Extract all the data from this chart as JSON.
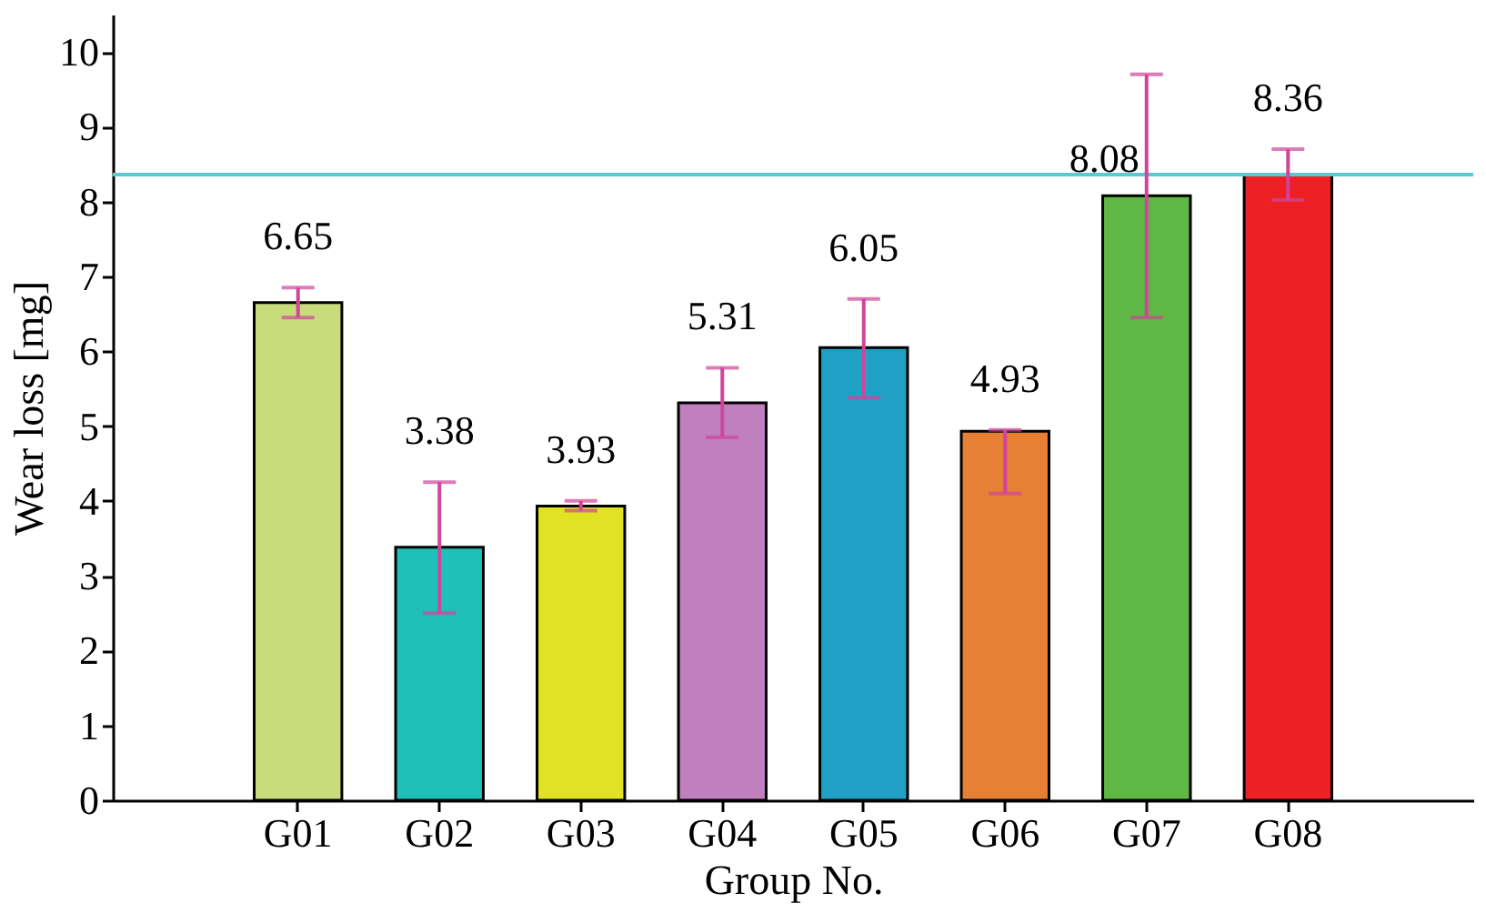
{
  "chart_data": {
    "type": "bar",
    "xlabel": "Group No.",
    "ylabel": "Wear loss [mg]",
    "categories": [
      "G01",
      "G02",
      "G03",
      "G04",
      "G05",
      "G06",
      "G07",
      "G08"
    ],
    "values": [
      6.65,
      3.38,
      3.93,
      5.31,
      6.05,
      4.93,
      8.08,
      8.36
    ],
    "colors": [
      "#c8dc7c",
      "#20c0b8",
      "#e2e224",
      "#c080c0",
      "#20a0c4",
      "#e68034",
      "#60b844",
      "#ee2024"
    ],
    "errors": [
      [
        6.45,
        6.85
      ],
      [
        2.5,
        4.25
      ],
      [
        3.87,
        4.0
      ],
      [
        4.85,
        5.78
      ],
      [
        5.38,
        6.7
      ],
      [
        4.1,
        4.95
      ],
      [
        6.45,
        9.7
      ],
      [
        8.02,
        8.7
      ]
    ],
    "data_labels": true,
    "ylim": [
      0,
      10.5
    ],
    "yticks": [
      0,
      1,
      2,
      3,
      4,
      5,
      6,
      7,
      8,
      9,
      10
    ],
    "grid": false,
    "legend": false,
    "ref_lines": [
      {
        "axis": "y",
        "value": 8.36,
        "color": "#5cc8d4"
      }
    ]
  }
}
